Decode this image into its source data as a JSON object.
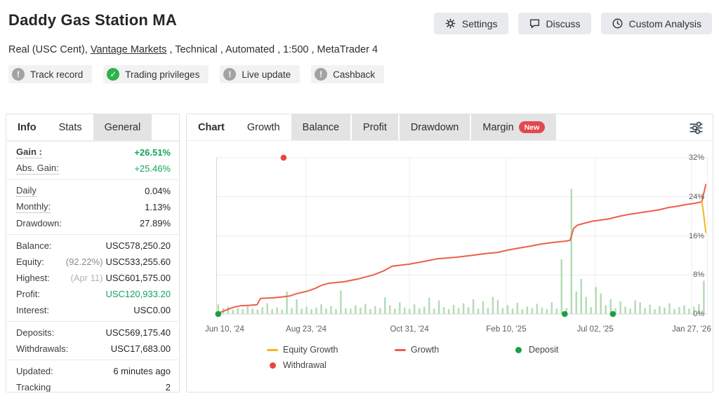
{
  "header": {
    "title": "Daddy Gas Station MA",
    "subtitle": {
      "before_link": "Real (USC Cent), ",
      "broker_link": "Vantage Markets",
      "after_link": " , Technical , Automated , 1:500 , MetaTrader 4"
    },
    "buttons": {
      "settings": "Settings",
      "discuss": "Discuss",
      "custom_analysis": "Custom Analysis"
    },
    "badges": [
      {
        "label": "Track record",
        "status": "warning"
      },
      {
        "label": "Trading privileges",
        "status": "ok"
      },
      {
        "label": "Live update",
        "status": "warning"
      },
      {
        "label": "Cashback",
        "status": "warning"
      }
    ]
  },
  "icons": {
    "warning_glyph": "!",
    "check_glyph": "✓"
  },
  "stats_panel": {
    "tabs": [
      {
        "label": "Info"
      },
      {
        "label": "Stats"
      },
      {
        "label": "General"
      }
    ],
    "rows": {
      "gain": {
        "label": "Gain :",
        "value": "+26.51%"
      },
      "abs_gain": {
        "label": "Abs. Gain:",
        "value": "+25.46%"
      },
      "daily": {
        "label": "Daily",
        "value": "0.04%"
      },
      "monthly": {
        "label": "Monthly:",
        "value": "1.13%"
      },
      "drawdown": {
        "label": "Drawdown:",
        "value": "27.89%"
      },
      "balance": {
        "label": "Balance:",
        "value": "USC578,250.20"
      },
      "equity": {
        "label": "Equity:",
        "prefix": "(92.22%)",
        "value": "USC533,255.60"
      },
      "highest": {
        "label": "Highest:",
        "prefix": "(Apr 11)",
        "value": "USC601,575.00"
      },
      "profit": {
        "label": "Profit:",
        "value": "USC120,933.20"
      },
      "interest": {
        "label": "Interest:",
        "value": "USC0.00"
      },
      "deposits": {
        "label": "Deposits:",
        "value": "USC569,175.40"
      },
      "withdrawals": {
        "label": "Withdrawals:",
        "value": "USC17,683.00"
      },
      "updated": {
        "label": "Updated:",
        "value": "6 minutes ago"
      },
      "tracking": {
        "label": "Tracking",
        "value": "2"
      }
    }
  },
  "chart_panel": {
    "tabs": [
      {
        "label": "Chart"
      },
      {
        "label": "Growth"
      },
      {
        "label": "Balance"
      },
      {
        "label": "Profit"
      },
      {
        "label": "Drawdown"
      },
      {
        "label": "Margin",
        "badge": "New"
      }
    ],
    "legend": {
      "equity_growth": "Equity Growth",
      "growth": "Growth",
      "deposit": "Deposit",
      "withdrawal": "Withdrawal"
    }
  },
  "chart_data": {
    "type": "line",
    "ylim": [
      0,
      34.5
    ],
    "y_ticks": [
      0,
      8,
      16,
      24,
      32
    ],
    "y_tick_labels": [
      "0%",
      "8%",
      "16%",
      "24%",
      "32%"
    ],
    "x_ticks": [
      {
        "label": "Jun 10, '24",
        "pos": 0.017
      },
      {
        "label": "Aug 23, '24",
        "pos": 0.183
      },
      {
        "label": "Oct 31, '24",
        "pos": 0.393
      },
      {
        "label": "Feb 10, '25",
        "pos": 0.59
      },
      {
        "label": "Jul 02, '25",
        "pos": 0.771
      },
      {
        "label": "Jan 27, '26",
        "pos": 0.967
      }
    ],
    "grid_x": [
      0.183,
      0.393,
      0.59,
      0.771,
      0.967
    ],
    "series": [
      {
        "name": "Growth",
        "color": "#ed5f49",
        "points": [
          [
            0.0,
            0.0
          ],
          [
            0.02,
            0.8
          ],
          [
            0.036,
            1.4
          ],
          [
            0.05,
            1.7
          ],
          [
            0.07,
            1.8
          ],
          [
            0.083,
            1.9
          ],
          [
            0.09,
            3.2
          ],
          [
            0.115,
            3.3
          ],
          [
            0.135,
            3.5
          ],
          [
            0.15,
            3.7
          ],
          [
            0.165,
            4.2
          ],
          [
            0.183,
            4.6
          ],
          [
            0.2,
            5.2
          ],
          [
            0.215,
            5.9
          ],
          [
            0.229,
            6.3
          ],
          [
            0.26,
            6.6
          ],
          [
            0.29,
            7.2
          ],
          [
            0.32,
            8.0
          ],
          [
            0.34,
            8.8
          ],
          [
            0.358,
            9.8
          ],
          [
            0.393,
            10.2
          ],
          [
            0.42,
            10.7
          ],
          [
            0.45,
            11.3
          ],
          [
            0.487,
            11.6
          ],
          [
            0.52,
            12.0
          ],
          [
            0.55,
            12.4
          ],
          [
            0.572,
            12.6
          ],
          [
            0.59,
            13.0
          ],
          [
            0.61,
            13.4
          ],
          [
            0.64,
            13.9
          ],
          [
            0.66,
            14.3
          ],
          [
            0.69,
            14.7
          ],
          [
            0.71,
            14.9
          ],
          [
            0.72,
            15.1
          ],
          [
            0.727,
            17.5
          ],
          [
            0.735,
            18.2
          ],
          [
            0.75,
            18.6
          ],
          [
            0.765,
            19.0
          ],
          [
            0.78,
            19.2
          ],
          [
            0.8,
            19.5
          ],
          [
            0.82,
            20.0
          ],
          [
            0.84,
            20.4
          ],
          [
            0.86,
            20.7
          ],
          [
            0.88,
            21.0
          ],
          [
            0.9,
            21.3
          ],
          [
            0.92,
            21.8
          ],
          [
            0.94,
            22.1
          ],
          [
            0.955,
            22.4
          ],
          [
            0.97,
            22.6
          ],
          [
            0.98,
            22.8
          ],
          [
            0.988,
            23.0
          ],
          [
            0.996,
            26.5
          ]
        ]
      },
      {
        "name": "Equity Growth",
        "color": "#f2b81c",
        "points": [
          [
            0.988,
            23.0
          ],
          [
            0.991,
            21.0
          ],
          [
            0.996,
            16.7
          ]
        ]
      }
    ],
    "deposit_bars": {
      "color": "#b4dcb6",
      "start": 0.004,
      "end": 0.992,
      "heights": [
        2.0,
        1.2,
        1.5,
        0.9,
        1.2,
        1.0,
        1.7,
        1.1,
        0.9,
        1.4,
        2.2,
        1.0,
        1.3,
        0.9,
        4.6,
        1.2,
        3.0,
        1.1,
        1.5,
        1.0,
        1.3,
        2.0,
        1.1,
        1.6,
        1.0,
        4.8,
        1.2,
        1.1,
        1.8,
        1.3,
        2.1,
        1.0,
        1.6,
        1.2,
        3.4,
        1.8,
        1.1,
        2.4,
        1.3,
        1.0,
        2.0,
        1.2,
        1.5,
        3.3,
        1.1,
        2.8,
        1.4,
        1.0,
        1.9,
        1.2,
        2.2,
        1.4,
        3.0,
        1.1,
        2.6,
        1.3,
        3.5,
        2.9,
        1.2,
        1.8,
        1.1,
        2.3,
        1.0,
        1.5,
        1.2,
        2.1,
        1.3,
        1.0,
        2.4,
        1.1,
        11.2,
        1.2,
        25.6,
        4.6,
        7.2,
        3.5,
        1.4,
        5.5,
        4.2,
        1.8,
        3.0,
        1.2,
        2.6,
        1.5,
        1.1,
        2.8,
        2.4,
        1.2,
        1.9,
        1.0,
        1.6,
        1.3,
        2.2,
        1.0,
        1.4,
        1.8,
        1.1,
        1.5,
        2.0,
        6.8
      ]
    },
    "deposit_markers": {
      "color": "#1ba03f",
      "positions": [
        0.004,
        0.709,
        0.807
      ]
    },
    "withdrawal_markers": {
      "color": "#e8463e",
      "points": [
        [
          0.137,
          32
        ]
      ]
    }
  }
}
